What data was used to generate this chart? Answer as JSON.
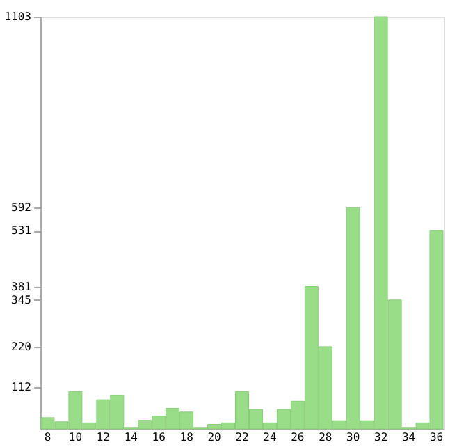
{
  "chart_data": {
    "type": "bar",
    "categories": [
      "8",
      null,
      "10",
      null,
      "12",
      null,
      "14",
      null,
      "16",
      null,
      "18",
      null,
      "20",
      null,
      "22",
      null,
      "24",
      null,
      "26",
      null,
      "28",
      null,
      "30",
      null,
      "32",
      null,
      "34",
      null,
      "36"
    ],
    "values": [
      30,
      19,
      100,
      16,
      78,
      89,
      4,
      23,
      34,
      55,
      45,
      4,
      12,
      16,
      100,
      52,
      16,
      52,
      74,
      381,
      220,
      22,
      592,
      22,
      1103,
      345,
      4,
      16,
      531
    ],
    "color": "#99dd88",
    "ylim": [
      0,
      1103
    ],
    "yticks": [
      112,
      220,
      345,
      381,
      531,
      592,
      1103
    ],
    "grid": false
  }
}
